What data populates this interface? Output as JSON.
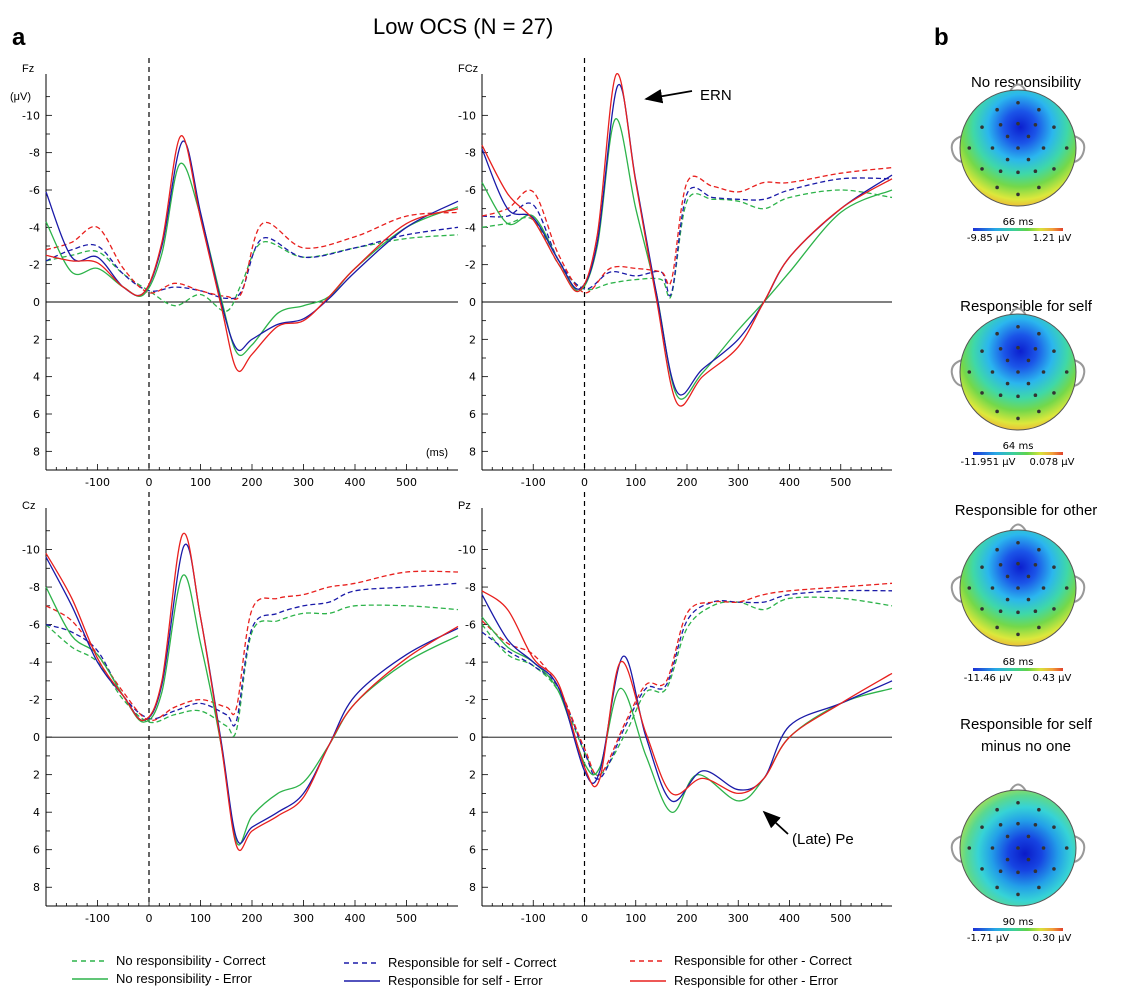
{
  "title": "Low OCS (N = 27)",
  "panel_a_label": "a",
  "panel_b_label": "b",
  "unit_label": "(μV)",
  "time_unit_label": "(ms)",
  "annotations": {
    "ern": "ERN",
    "pe": "(Late) Pe"
  },
  "legend": [
    {
      "label": "No responsibility - Correct",
      "color": "#2db34a",
      "dash": true
    },
    {
      "label": "Responsible for self - Correct",
      "color": "#1a1aa8",
      "dash": true
    },
    {
      "label": "Responsible for other - Correct",
      "color": "#e8201e",
      "dash": true
    },
    {
      "label": "No responsibility - Error",
      "color": "#2db34a",
      "dash": false
    },
    {
      "label": "Responsible for self - Error",
      "color": "#1a1aa8",
      "dash": false
    },
    {
      "label": "Responsible for other - Error",
      "color": "#e8201e",
      "dash": false
    }
  ],
  "chart_data": [
    {
      "type": "line",
      "channel": "Fz",
      "xlim": [
        -200,
        600
      ],
      "ylim": [
        -12,
        9
      ],
      "y_inverted": true,
      "xticks": [
        -100,
        0,
        100,
        200,
        300,
        400,
        500
      ],
      "yticks": [
        -10,
        -8,
        -6,
        -4,
        -2,
        0,
        2,
        4,
        6,
        8
      ],
      "series": [
        {
          "name": "No responsibility - Correct",
          "x": [
            -200,
            -150,
            -100,
            -50,
            0,
            50,
            100,
            150,
            180,
            220,
            300,
            400,
            500,
            600
          ],
          "y": [
            -2.2,
            -2.5,
            -2.7,
            -1.5,
            -0.6,
            0.2,
            -0.4,
            0.5,
            -1.0,
            -3.2,
            -2.4,
            -2.9,
            -3.4,
            -3.6
          ]
        },
        {
          "name": "Responsible for self - Correct",
          "x": [
            -200,
            -150,
            -100,
            -50,
            0,
            50,
            100,
            150,
            180,
            220,
            300,
            400,
            500,
            600
          ],
          "y": [
            -2.2,
            -2.8,
            -3.0,
            -1.5,
            -0.6,
            -0.8,
            -0.6,
            -0.2,
            -0.6,
            -3.4,
            -2.4,
            -2.9,
            -3.6,
            -4.0
          ]
        },
        {
          "name": "Responsible for other - Correct",
          "x": [
            -200,
            -150,
            -100,
            -50,
            0,
            50,
            100,
            150,
            180,
            220,
            300,
            400,
            500,
            600
          ],
          "y": [
            -2.8,
            -3.2,
            -4.0,
            -1.8,
            -0.5,
            -1.0,
            -0.6,
            -0.3,
            -0.5,
            -4.2,
            -2.9,
            -3.5,
            -4.6,
            -4.8
          ]
        },
        {
          "name": "No responsibility - Error",
          "x": [
            -200,
            -150,
            -100,
            -50,
            -10,
            25,
            60,
            100,
            140,
            170,
            200,
            250,
            300,
            350,
            400,
            500,
            600
          ],
          "y": [
            -4.3,
            -1.6,
            -1.8,
            -0.8,
            -0.4,
            -2.6,
            -7.4,
            -4.6,
            -0.2,
            2.7,
            2.3,
            0.6,
            0.2,
            -0.3,
            -1.8,
            -4.0,
            -5.1
          ]
        },
        {
          "name": "Responsible for self - Error",
          "x": [
            -200,
            -150,
            -100,
            -50,
            -10,
            25,
            65,
            100,
            140,
            170,
            200,
            250,
            300,
            350,
            400,
            500,
            600
          ],
          "y": [
            -5.9,
            -2.4,
            -2.4,
            -0.8,
            -0.5,
            -3.0,
            -8.6,
            -4.8,
            0.0,
            2.5,
            2.0,
            1.2,
            0.9,
            -0.2,
            -1.6,
            -4.0,
            -5.4
          ]
        },
        {
          "name": "Responsible for other - Error",
          "x": [
            -200,
            -150,
            -100,
            -50,
            -10,
            25,
            62,
            100,
            140,
            170,
            200,
            250,
            300,
            350,
            400,
            500,
            600
          ],
          "y": [
            -2.5,
            -2.2,
            -2.1,
            -0.8,
            -0.5,
            -3.2,
            -8.9,
            -4.5,
            0.2,
            3.6,
            2.8,
            1.3,
            1.0,
            -0.3,
            -1.8,
            -4.2,
            -5.0
          ]
        }
      ]
    },
    {
      "type": "line",
      "channel": "FCz",
      "xlim": [
        -200,
        600
      ],
      "ylim": [
        -12,
        9
      ],
      "y_inverted": true,
      "xticks": [
        -100,
        0,
        100,
        200,
        300,
        400,
        500
      ],
      "yticks": [
        -10,
        -8,
        -6,
        -4,
        -2,
        0,
        2,
        4,
        6,
        8
      ],
      "series": [
        {
          "name": "No responsibility - Correct",
          "x": [
            -200,
            -150,
            -100,
            -50,
            0,
            50,
            100,
            150,
            170,
            200,
            250,
            300,
            350,
            400,
            500,
            600
          ],
          "y": [
            -4.0,
            -4.2,
            -4.4,
            -2.0,
            -0.7,
            -1.0,
            -1.2,
            -1.2,
            -0.4,
            -5.4,
            -5.5,
            -5.4,
            -5.0,
            -5.6,
            -6.0,
            -5.6
          ]
        },
        {
          "name": "Responsible for self - Correct",
          "x": [
            -200,
            -150,
            -100,
            -50,
            0,
            50,
            100,
            150,
            170,
            200,
            250,
            300,
            350,
            400,
            500,
            600
          ],
          "y": [
            -4.6,
            -4.6,
            -5.2,
            -2.2,
            -0.7,
            -1.6,
            -1.4,
            -1.6,
            -0.5,
            -5.8,
            -5.6,
            -5.5,
            -5.5,
            -6.0,
            -6.6,
            -6.6
          ]
        },
        {
          "name": "Responsible for other - Correct",
          "x": [
            -200,
            -150,
            -100,
            -50,
            0,
            50,
            100,
            150,
            170,
            200,
            250,
            300,
            350,
            400,
            500,
            600
          ],
          "y": [
            -4.6,
            -5.0,
            -5.9,
            -2.5,
            -0.5,
            -1.8,
            -1.8,
            -1.6,
            -1.2,
            -6.4,
            -6.2,
            -5.9,
            -6.4,
            -6.4,
            -6.9,
            -7.2
          ]
        },
        {
          "name": "No responsibility - Error",
          "x": [
            -200,
            -150,
            -100,
            -50,
            -10,
            25,
            60,
            100,
            140,
            180,
            230,
            300,
            350,
            400,
            500,
            600
          ],
          "y": [
            -6.4,
            -4.2,
            -4.6,
            -2.2,
            -0.6,
            -3.0,
            -9.8,
            -5.0,
            -0.5,
            5.0,
            3.8,
            1.5,
            0.0,
            -1.6,
            -4.8,
            -6.0
          ]
        },
        {
          "name": "Responsible for self - Error",
          "x": [
            -200,
            -150,
            -100,
            -50,
            -10,
            25,
            65,
            100,
            140,
            180,
            230,
            300,
            350,
            400,
            500,
            600
          ],
          "y": [
            -8.2,
            -5.0,
            -4.5,
            -2.2,
            -0.7,
            -3.2,
            -11.6,
            -6.5,
            -0.5,
            4.8,
            3.6,
            2.0,
            0.0,
            -2.4,
            -5.0,
            -6.8
          ]
        },
        {
          "name": "Responsible for other - Error",
          "x": [
            -200,
            -150,
            -100,
            -50,
            -10,
            25,
            62,
            100,
            140,
            180,
            230,
            300,
            350,
            400,
            500,
            600
          ],
          "y": [
            -8.4,
            -5.8,
            -4.4,
            -2.0,
            -0.6,
            -3.6,
            -12.2,
            -6.4,
            -0.2,
            5.4,
            4.0,
            2.4,
            0.0,
            -2.4,
            -5.0,
            -6.6
          ]
        }
      ]
    },
    {
      "type": "line",
      "channel": "Cz",
      "xlim": [
        -200,
        600
      ],
      "ylim": [
        -12,
        9
      ],
      "y_inverted": true,
      "xticks": [
        -100,
        0,
        100,
        200,
        300,
        400,
        500
      ],
      "yticks": [
        -10,
        -8,
        -6,
        -4,
        -2,
        0,
        2,
        4,
        6,
        8
      ],
      "series": [
        {
          "name": "No responsibility - Correct",
          "x": [
            -200,
            -150,
            -100,
            -50,
            0,
            50,
            100,
            150,
            170,
            200,
            250,
            300,
            350,
            400,
            500,
            600
          ],
          "y": [
            -6.0,
            -4.8,
            -4.0,
            -2.0,
            -0.8,
            -1.2,
            -1.4,
            -0.6,
            -0.4,
            -5.6,
            -6.2,
            -6.6,
            -6.6,
            -7.0,
            -7.0,
            -6.8
          ]
        },
        {
          "name": "Responsible for self - Correct",
          "x": [
            -200,
            -150,
            -100,
            -50,
            0,
            50,
            100,
            150,
            170,
            200,
            250,
            300,
            350,
            400,
            500,
            600
          ],
          "y": [
            -6.0,
            -5.6,
            -4.6,
            -2.2,
            -1.0,
            -1.4,
            -1.8,
            -1.2,
            -0.9,
            -5.8,
            -6.6,
            -7.0,
            -7.2,
            -7.8,
            -8.0,
            -8.2
          ]
        },
        {
          "name": "Responsible for other - Correct",
          "x": [
            -200,
            -150,
            -100,
            -50,
            0,
            50,
            100,
            150,
            170,
            200,
            250,
            300,
            350,
            400,
            500,
            600
          ],
          "y": [
            -7.0,
            -6.2,
            -4.4,
            -2.4,
            -0.9,
            -1.6,
            -2.0,
            -1.6,
            -1.6,
            -6.8,
            -7.4,
            -7.6,
            -8.0,
            -8.2,
            -8.8,
            -8.8
          ]
        },
        {
          "name": "No responsibility - Error",
          "x": [
            -200,
            -150,
            -100,
            -50,
            -10,
            25,
            65,
            100,
            140,
            170,
            200,
            250,
            300,
            350,
            400,
            500,
            600
          ],
          "y": [
            -8.0,
            -5.4,
            -4.4,
            -2.2,
            -0.8,
            -2.4,
            -8.6,
            -5.0,
            0.4,
            5.6,
            4.2,
            3.0,
            2.4,
            0.4,
            -1.8,
            -4.0,
            -5.4
          ]
        },
        {
          "name": "Responsible for self - Error",
          "x": [
            -200,
            -150,
            -100,
            -50,
            -10,
            25,
            68,
            100,
            140,
            170,
            200,
            250,
            300,
            350,
            400,
            500,
            600
          ],
          "y": [
            -9.6,
            -7.0,
            -4.0,
            -2.2,
            -0.9,
            -2.8,
            -10.2,
            -6.4,
            0.2,
            5.4,
            4.8,
            4.0,
            3.0,
            0.4,
            -2.2,
            -4.4,
            -5.8
          ]
        },
        {
          "name": "Responsible for other - Error",
          "x": [
            -200,
            -150,
            -100,
            -50,
            -10,
            25,
            65,
            100,
            140,
            170,
            200,
            250,
            300,
            350,
            400,
            500,
            600
          ],
          "y": [
            -9.8,
            -7.4,
            -4.2,
            -2.2,
            -0.9,
            -3.0,
            -10.8,
            -6.4,
            0.4,
            5.8,
            5.0,
            4.2,
            3.2,
            0.4,
            -1.8,
            -4.2,
            -5.9
          ]
        }
      ]
    },
    {
      "type": "line",
      "channel": "Pz",
      "xlim": [
        -200,
        600
      ],
      "ylim": [
        -12,
        9
      ],
      "y_inverted": true,
      "xticks": [
        -100,
        0,
        100,
        200,
        300,
        400,
        500
      ],
      "yticks": [
        -10,
        -8,
        -6,
        -4,
        -2,
        0,
        2,
        4,
        6,
        8
      ],
      "series": [
        {
          "name": "No responsibility - Correct",
          "x": [
            -200,
            -150,
            -100,
            -50,
            0,
            30,
            80,
            120,
            160,
            200,
            250,
            300,
            350,
            400,
            500,
            600
          ],
          "y": [
            -6.0,
            -4.4,
            -3.8,
            -2.4,
            0.8,
            2.0,
            -0.2,
            -2.4,
            -2.6,
            -5.8,
            -7.0,
            -7.2,
            -6.8,
            -7.4,
            -7.4,
            -7.0
          ]
        },
        {
          "name": "Responsible for self - Correct",
          "x": [
            -200,
            -150,
            -100,
            -50,
            0,
            30,
            80,
            120,
            160,
            200,
            250,
            300,
            350,
            400,
            500,
            600
          ],
          "y": [
            -5.6,
            -4.6,
            -3.8,
            -2.6,
            0.8,
            2.2,
            -0.6,
            -2.6,
            -2.8,
            -6.2,
            -7.2,
            -7.2,
            -7.2,
            -7.6,
            -7.8,
            -7.8
          ]
        },
        {
          "name": "Responsible for other - Correct",
          "x": [
            -200,
            -150,
            -100,
            -50,
            0,
            30,
            80,
            120,
            160,
            200,
            250,
            300,
            350,
            400,
            500,
            600
          ],
          "y": [
            -6.2,
            -5.0,
            -4.4,
            -2.6,
            0.6,
            2.0,
            -0.8,
            -2.8,
            -3.0,
            -6.6,
            -7.2,
            -7.2,
            -7.6,
            -7.8,
            -8.0,
            -8.2
          ]
        },
        {
          "name": "No responsibility - Error",
          "x": [
            -200,
            -150,
            -100,
            -50,
            0,
            30,
            70,
            120,
            170,
            220,
            300,
            350,
            400,
            500,
            600
          ],
          "y": [
            -6.4,
            -4.8,
            -4.0,
            -2.4,
            1.4,
            1.6,
            -2.6,
            1.0,
            4.0,
            2.0,
            3.4,
            2.2,
            0.0,
            -1.8,
            -2.6
          ]
        },
        {
          "name": "Responsible for self - Error",
          "x": [
            -200,
            -150,
            -100,
            -50,
            0,
            30,
            75,
            120,
            170,
            230,
            300,
            350,
            400,
            500,
            600
          ],
          "y": [
            -7.6,
            -5.2,
            -4.0,
            -2.6,
            1.8,
            1.8,
            -4.3,
            0.0,
            3.4,
            1.8,
            2.8,
            2.2,
            -0.6,
            -1.8,
            -3.0
          ]
        },
        {
          "name": "Responsible for other - Error",
          "x": [
            -200,
            -150,
            -100,
            -50,
            0,
            30,
            70,
            120,
            170,
            230,
            300,
            350,
            400,
            500,
            600
          ],
          "y": [
            -7.8,
            -6.8,
            -4.2,
            -2.8,
            1.6,
            2.2,
            -4.0,
            -0.2,
            3.0,
            2.2,
            3.0,
            2.2,
            0.0,
            -1.8,
            -3.4
          ]
        }
      ]
    }
  ],
  "topomaps": [
    {
      "title": "No responsibility",
      "time": "66 ms",
      "min": "-9.85 μV",
      "max": "1.21 μV",
      "pattern": "central"
    },
    {
      "title": "Responsible for self",
      "time": "64 ms",
      "min": "-11.951 μV",
      "max": "0.078 μV",
      "pattern": "central"
    },
    {
      "title": "Responsible for other",
      "time": "68 ms",
      "min": "-11.46 μV",
      "max": "0.43 μV",
      "pattern": "central"
    },
    {
      "title": "Responsible for self\nminus no one",
      "time": "90 ms",
      "min": "-1.71 μV",
      "max": "0.30 μV",
      "pattern": "diff"
    }
  ]
}
